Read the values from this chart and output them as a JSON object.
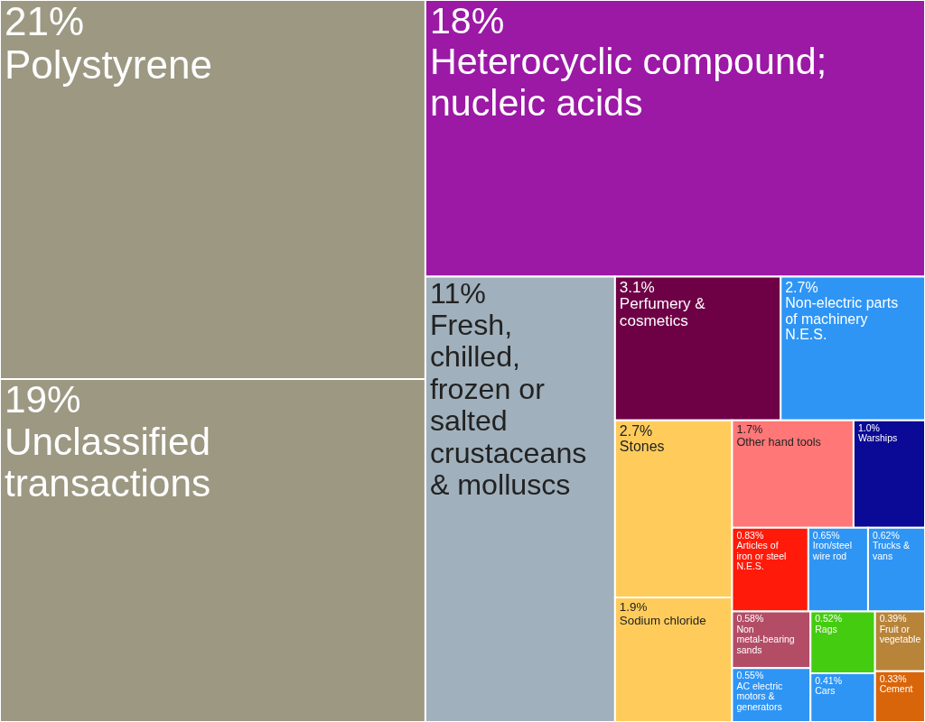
{
  "chart_data": {
    "type": "other",
    "categories": [
      "Polystyrene",
      "Unclassified transactions",
      "Heterocyclic compound; nucleic acids",
      "Fresh, chilled, frozen or salted crustaceans & molluscs",
      "Perfumery & cosmetics",
      "Non-electric parts of machinery N.E.S.",
      "Stones",
      "Sodium chloride",
      "Other hand tools",
      "Warships",
      "Articles of iron or steel N.E.S.",
      "Iron/steel wire rod",
      "Trucks & vans",
      "Non metal-bearing sands",
      "AC electric motors & generators",
      "Rags",
      "Cars",
      "Fruit or vegetable",
      "Cement"
    ],
    "values": [
      21,
      19,
      18,
      11,
      3.1,
      2.7,
      2.7,
      1.9,
      1.7,
      1.0,
      0.83,
      0.65,
      0.62,
      0.58,
      0.55,
      0.52,
      0.41,
      0.39,
      0.33
    ],
    "value_labels": [
      "21%",
      "19%",
      "18%",
      "11%",
      "3.1%",
      "2.7%",
      "2.7%",
      "1.9%",
      "1.7%",
      "1.0%",
      "0.83%",
      "0.65%",
      "0.62%",
      "0.58%",
      "0.55%",
      "0.52%",
      "0.41%",
      "0.39%",
      "0.33%"
    ],
    "colors": [
      "#9c9882",
      "#9c9882",
      "#9b19a5",
      "#a0b0bc",
      "#6e0046",
      "#2e95f5",
      "#ffcc5c",
      "#ffcc5c",
      "#ff7777",
      "#0a0a96",
      "#ff1a0a",
      "#2e95f5",
      "#2e95f5",
      "#b34d66",
      "#2e95f5",
      "#44cc11",
      "#2e95f5",
      "#b8843a",
      "#d9650b"
    ]
  }
}
